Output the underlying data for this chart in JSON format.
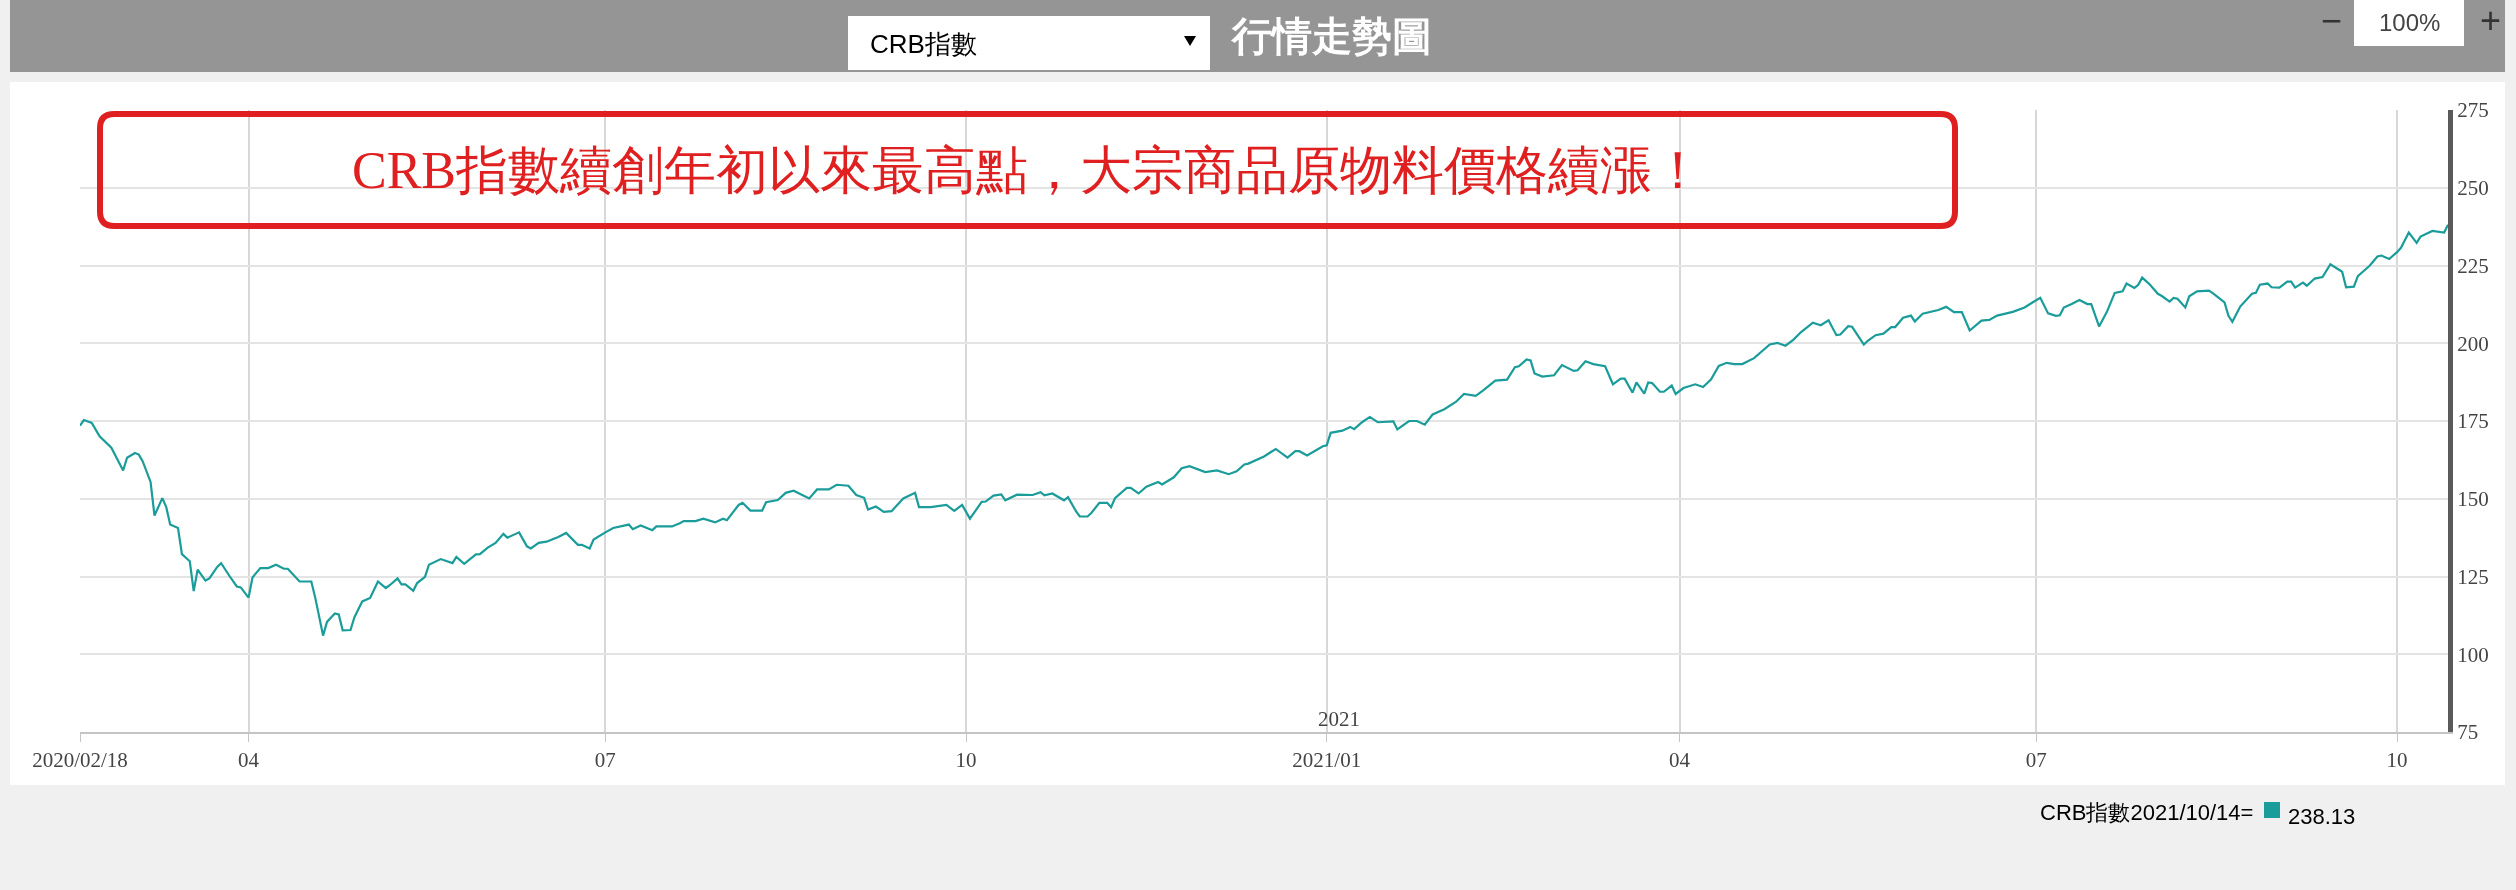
{
  "chart_data": {
    "type": "line",
    "title": "CRB指數續創年初以來最高點，大宗商品原物料價格續漲！",
    "subtitle": "行情走勢圖",
    "annotations": [
      "CRB指數",
      "100%",
      "−",
      "+",
      "2021",
      "CRB指數2021/10/14=",
      "238.13"
    ],
    "x": [
      "2020-02-18",
      "2020-02-19",
      "2020-02-21",
      "2020-02-23",
      "2020-02-26",
      "2020-02-29",
      "2020-03-01",
      "2020-03-03",
      "2020-03-04",
      "2020-03-05",
      "2020-03-07",
      "2020-03-08",
      "2020-03-10",
      "2020-03-11",
      "2020-03-12",
      "2020-03-14",
      "2020-03-15",
      "2020-03-17",
      "2020-03-18",
      "2020-03-19",
      "2020-03-21",
      "2020-03-22",
      "2020-03-24",
      "2020-03-25",
      "2020-03-27",
      "2020-03-29",
      "2020-03-30",
      "2020-04-01",
      "2020-04-02",
      "2020-04-04",
      "2020-04-06",
      "2020-04-08",
      "2020-04-10",
      "2020-04-11",
      "2020-04-14",
      "2020-04-17",
      "2020-04-18",
      "2020-04-20",
      "2020-04-21",
      "2020-04-23",
      "2020-04-24",
      "2020-04-25",
      "2020-04-27",
      "2020-04-28",
      "2020-04-30",
      "2020-05-02",
      "2020-05-04",
      "2020-05-06",
      "2020-05-07",
      "2020-05-09",
      "2020-05-10",
      "2020-05-11",
      "2020-05-13",
      "2020-05-14",
      "2020-05-16",
      "2020-05-17",
      "2020-05-20",
      "2020-05-23",
      "2020-05-24",
      "2020-05-26",
      "2020-05-29",
      "2020-05-30",
      "2020-06-01",
      "2020-06-03",
      "2020-06-05",
      "2020-06-06",
      "2020-06-09",
      "2020-06-11",
      "2020-06-12",
      "2020-06-14",
      "2020-06-16",
      "2020-06-19",
      "2020-06-21",
      "2020-06-24",
      "2020-06-25",
      "2020-06-27",
      "2020-06-28",
      "2020-07-01",
      "2020-07-03",
      "2020-07-07",
      "2020-07-08",
      "2020-07-10",
      "2020-07-13",
      "2020-07-14",
      "2020-07-18",
      "2020-07-20",
      "2020-07-21",
      "2020-07-24",
      "2020-07-26",
      "2020-07-29",
      "2020-07-31",
      "2020-08-01",
      "2020-08-04",
      "2020-08-05",
      "2020-08-07",
      "2020-08-10",
      "2020-08-11",
      "2020-08-14",
      "2020-08-16",
      "2020-08-18",
      "2020-08-22",
      "2020-08-24",
      "2020-08-27",
      "2020-08-29",
      "2020-09-01",
      "2020-09-03",
      "2020-09-05",
      "2020-09-06",
      "2020-09-08",
      "2020-09-10",
      "2020-09-12",
      "2020-09-15",
      "2020-09-18",
      "2020-09-19",
      "2020-09-22",
      "2020-09-26",
      "2020-09-28",
      "2020-09-30",
      "2020-10-02",
      "2020-10-05",
      "2020-10-06",
      "2020-10-08",
      "2020-10-10",
      "2020-10-11",
      "2020-10-14",
      "2020-10-18",
      "2020-10-20",
      "2020-10-21",
      "2020-10-23",
      "2020-10-26",
      "2020-10-27",
      "2020-10-29",
      "2020-10-30",
      "2020-11-01",
      "2020-11-02",
      "2020-11-04",
      "2020-11-06",
      "2020-11-07",
      "2020-11-08",
      "2020-11-11",
      "2020-11-12",
      "2020-11-14",
      "2020-11-16",
      "2020-11-19",
      "2020-11-20",
      "2020-11-23",
      "2020-11-25",
      "2020-11-27",
      "2020-12-01",
      "2020-12-04",
      "2020-12-07",
      "2020-12-09",
      "2020-12-11",
      "2020-12-12",
      "2020-12-16",
      "2020-12-19",
      "2020-12-22",
      "2020-12-24",
      "2020-12-25",
      "2020-12-27",
      "2020-12-31",
      "2021-01-01",
      "2021-01-02",
      "2021-01-05",
      "2021-01-07",
      "2021-01-08",
      "2021-01-10",
      "2021-01-12",
      "2021-01-14",
      "2021-01-18",
      "2021-01-19",
      "2021-01-22",
      "2021-01-24",
      "2021-01-26",
      "2021-01-28",
      "2021-01-31",
      "2021-02-03",
      "2021-02-05",
      "2021-02-08",
      "2021-02-10",
      "2021-02-13",
      "2021-02-16",
      "2021-02-18",
      "2021-02-19",
      "2021-02-21",
      "2021-02-22",
      "2021-02-23",
      "2021-02-25",
      "2021-02-28",
      "2021-03-02",
      "2021-03-05",
      "2021-03-06",
      "2021-03-08",
      "2021-03-10",
      "2021-03-13",
      "2021-03-15",
      "2021-03-17",
      "2021-03-18",
      "2021-03-20",
      "2021-03-21",
      "2021-03-23",
      "2021-03-24",
      "2021-03-25",
      "2021-03-27",
      "2021-03-28",
      "2021-03-30",
      "2021-03-31",
      "2021-04-02",
      "2021-04-05",
      "2021-04-07",
      "2021-04-09",
      "2021-04-11",
      "2021-04-13",
      "2021-04-15",
      "2021-04-17",
      "2021-04-20",
      "2021-04-24",
      "2021-04-26",
      "2021-04-28",
      "2021-04-30",
      "2021-05-02",
      "2021-05-05",
      "2021-05-07",
      "2021-05-09",
      "2021-05-11",
      "2021-05-12",
      "2021-05-14",
      "2021-05-15",
      "2021-05-18",
      "2021-05-19",
      "2021-05-21",
      "2021-05-23",
      "2021-05-25",
      "2021-05-26",
      "2021-05-28",
      "2021-05-30",
      "2021-05-31",
      "2021-06-02",
      "2021-06-06",
      "2021-06-08",
      "2021-06-10",
      "2021-06-12",
      "2021-06-14",
      "2021-06-17",
      "2021-06-19",
      "2021-06-21",
      "2021-06-25",
      "2021-06-28",
      "2021-06-30",
      "2021-07-02",
      "2021-07-04",
      "2021-07-06",
      "2021-07-07",
      "2021-07-08",
      "2021-07-10",
      "2021-07-12",
      "2021-07-14",
      "2021-07-15",
      "2021-07-17",
      "2021-07-19",
      "2021-07-21",
      "2021-07-23",
      "2021-07-24",
      "2021-07-26",
      "2021-07-27",
      "2021-07-28",
      "2021-07-30",
      "2021-08-01",
      "2021-08-02",
      "2021-08-04",
      "2021-08-05",
      "2021-08-06",
      "2021-08-08",
      "2021-08-09",
      "2021-08-11",
      "2021-08-14",
      "2021-08-15",
      "2021-08-18",
      "2021-08-19",
      "2021-08-20",
      "2021-08-22",
      "2021-08-25",
      "2021-08-26",
      "2021-08-27",
      "2021-08-29",
      "2021-08-30",
      "2021-09-01",
      "2021-09-03",
      "2021-09-04",
      "2021-09-05",
      "2021-09-07",
      "2021-09-08",
      "2021-09-10",
      "2021-09-12",
      "2021-09-14",
      "2021-09-17",
      "2021-09-18",
      "2021-09-20",
      "2021-09-21",
      "2021-09-23",
      "2021-09-24",
      "2021-09-26",
      "2021-09-27",
      "2021-09-29",
      "2021-10-01",
      "2021-10-02",
      "2021-10-04",
      "2021-10-06",
      "2021-10-07",
      "2021-10-10",
      "2021-10-13",
      "2021-10-14"
    ],
    "series": [
      {
        "color": "#1a9c9a",
        "values": [
          173.5,
          175.3,
          174.4,
          170.1,
          166.4,
          159.1,
          163.2,
          164.7,
          164.2,
          162.0,
          155.4,
          144.6,
          150.2,
          147.3,
          141.7,
          140.6,
          132.2,
          129.9,
          120.3,
          127.2,
          123.7,
          124.4,
          128.1,
          129.3,
          125.4,
          121.8,
          121.5,
          118.2,
          124.7,
          127.7,
          127.7,
          128.8,
          127.5,
          127.5,
          123.4,
          123.4,
          118.2,
          106.0,
          110.4,
          113.1,
          112.8,
          107.7,
          107.8,
          111.9,
          117.0,
          118.1,
          123.4,
          121.3,
          122.2,
          124.4,
          122.5,
          122.5,
          120.4,
          122.9,
          124.9,
          128.8,
          130.6,
          129.3,
          131.3,
          129.1,
          132.1,
          132.2,
          134.3,
          135.8,
          138.7,
          137.5,
          139.2,
          134.7,
          134.0,
          135.8,
          136.2,
          137.7,
          139.0,
          135.2,
          135.2,
          134.0,
          136.9,
          139.2,
          140.6,
          141.7,
          140.2,
          141.4,
          139.9,
          141.1,
          141.1,
          142.1,
          142.8,
          142.8,
          143.6,
          142.4,
          143.6,
          143.1,
          148.0,
          148.7,
          146.2,
          146.2,
          148.9,
          149.6,
          151.9,
          152.6,
          150.1,
          153.0,
          153.0,
          154.5,
          154.2,
          151.2,
          150.3,
          146.5,
          147.5,
          145.8,
          146.0,
          150.1,
          151.9,
          147.3,
          147.3,
          148.0,
          146.1,
          148.0,
          143.6,
          149.0,
          149.1,
          151.0,
          151.4,
          149.5,
          151.3,
          151.2,
          152.1,
          151.1,
          151.7,
          149.5,
          150.5,
          146.1,
          144.3,
          144.3,
          145.5,
          148.7,
          148.7,
          147.3,
          150.2,
          153.5,
          153.5,
          151.7,
          153.9,
          155.4,
          154.6,
          156.9,
          159.8,
          160.5,
          158.6,
          159.1,
          157.9,
          158.8,
          161.0,
          161.3,
          163.6,
          166.0,
          163.2,
          165.3,
          165.3,
          163.9,
          166.9,
          167.2,
          171.2,
          171.9,
          173.1,
          172.4,
          174.6,
          176.3,
          174.6,
          174.9,
          172.3,
          175.0,
          175.0,
          173.8,
          177.1,
          178.8,
          181.2,
          183.7,
          183.1,
          184.9,
          188.0,
          188.3,
          192.3,
          192.6,
          194.8,
          194.5,
          190.3,
          189.3,
          189.7,
          193.0,
          191.1,
          191.3,
          194.2,
          193.3,
          192.6,
          186.8,
          188.6,
          188.6,
          184.1,
          187.4,
          183.8,
          187.4,
          187.2,
          184.4,
          184.4,
          186.4,
          183.7,
          185.6,
          186.8,
          185.9,
          188.3,
          192.7,
          193.7,
          193.3,
          193.3,
          195.2,
          199.6,
          200.1,
          199.2,
          201.1,
          203.6,
          206.6,
          205.8,
          207.4,
          202.6,
          202.8,
          205.5,
          205.3,
          199.6,
          200.8,
          202.6,
          203.1,
          205.2,
          205.2,
          208.2,
          208.9,
          207.0,
          209.5,
          210.7,
          211.7,
          210.0,
          210.0,
          204.1,
          207.3,
          207.5,
          208.9,
          210.1,
          211.5,
          213.1,
          214.6,
          209.6,
          208.8,
          209.0,
          211.5,
          212.6,
          213.9,
          212.6,
          212.6,
          205.4,
          210.1,
          216.2,
          216.7,
          219.2,
          217.8,
          218.8,
          221.1,
          218.8,
          215.9,
          215.2,
          213.4,
          214.6,
          214.3,
          211.5,
          215.1,
          216.7,
          216.9,
          216.1,
          213.1,
          208.8,
          206.9,
          211.8,
          215.9,
          216.2,
          218.8,
          219.2,
          218.0,
          217.9,
          219.8,
          219.8,
          217.9,
          219.5,
          218.5,
          220.8,
          221.3,
          225.4,
          223.0,
          218.0,
          218.2,
          221.6,
          223.8,
          224.9,
          227.9,
          228.2,
          227.1,
          229.3,
          230.7,
          235.6,
          232.3,
          234.3,
          236.1,
          235.6,
          238.13
        ]
      }
    ],
    "xlim": [
      "2020-02-18",
      "2021-10-14"
    ],
    "xticks": [
      {
        "value": "2020-02-18",
        "label": "2020/02/18"
      },
      {
        "value": "2020-04-01",
        "label": "04"
      },
      {
        "value": "2020-07-01",
        "label": "07"
      },
      {
        "value": "2020-10-01",
        "label": "10"
      },
      {
        "value": "2021-01-01",
        "label": "2021/01"
      },
      {
        "value": "2021-04-01",
        "label": "04"
      },
      {
        "value": "2021-07-01",
        "label": "07"
      },
      {
        "value": "2021-10-01",
        "label": "10"
      }
    ],
    "ylim": [
      75,
      275
    ],
    "yticks": [
      75,
      100,
      125,
      150,
      175,
      200,
      225,
      250,
      275
    ],
    "grid": true,
    "marker": "none",
    "line_style": "solid"
  }
}
